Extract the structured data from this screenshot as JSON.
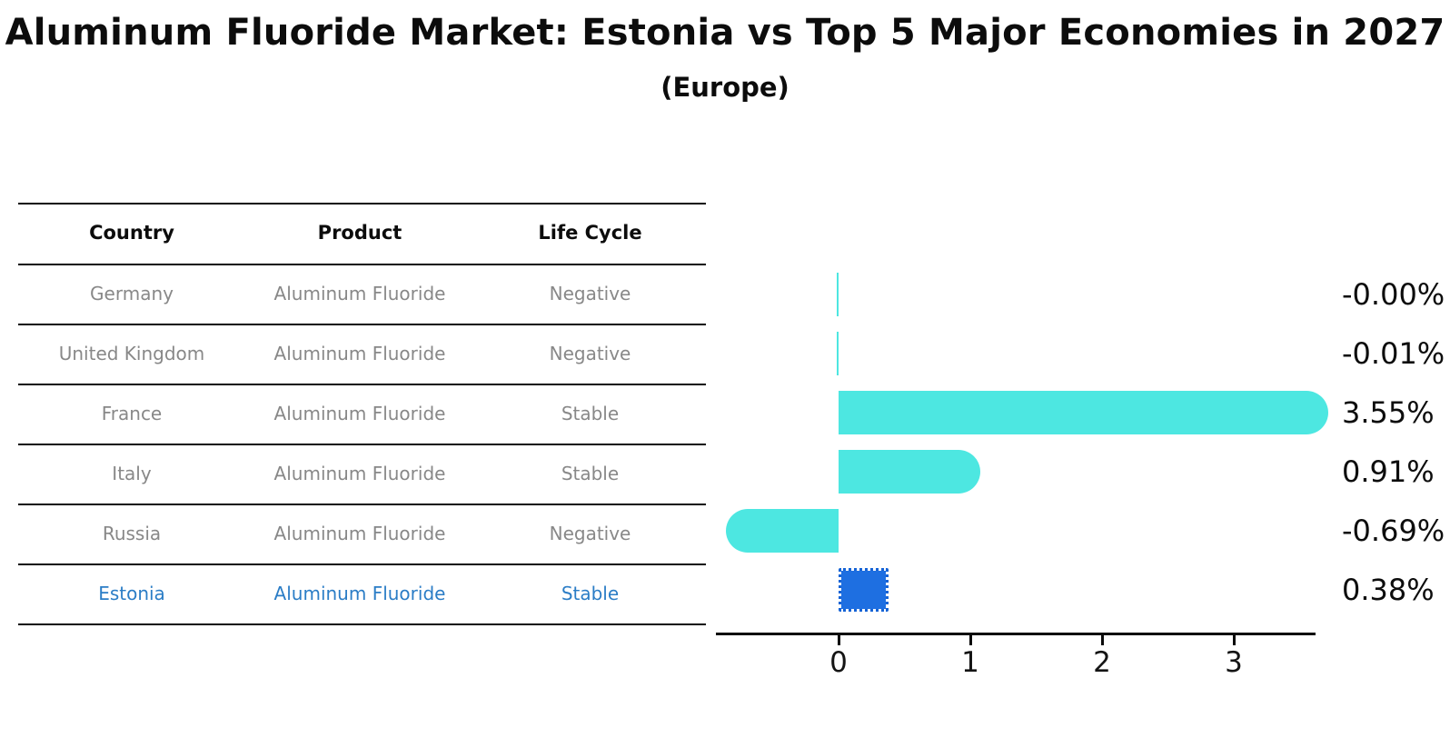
{
  "header": {
    "title": "Aluminum Fluoride Market: Estonia vs Top 5 Major Economies in 2027",
    "subtitle": "(Europe)"
  },
  "table": {
    "columns": [
      "Country",
      "Product",
      "Life Cycle"
    ],
    "rows": [
      {
        "country": "Germany",
        "product": "Aluminum Fluoride",
        "life_cycle": "Negative",
        "highlight": false
      },
      {
        "country": "United Kingdom",
        "product": "Aluminum Fluoride",
        "life_cycle": "Negative",
        "highlight": false
      },
      {
        "country": "France",
        "product": "Aluminum Fluoride",
        "life_cycle": "Stable",
        "highlight": false
      },
      {
        "country": "Italy",
        "product": "Aluminum Fluoride",
        "life_cycle": "Stable",
        "highlight": false
      },
      {
        "country": "Russia",
        "product": "Aluminum Fluoride",
        "life_cycle": "Negative",
        "highlight": false
      },
      {
        "country": "Estonia",
        "product": "Aluminum Fluoride",
        "life_cycle": "Stable",
        "highlight": true
      }
    ]
  },
  "chart_data": {
    "type": "bar",
    "orientation": "horizontal",
    "title": "Aluminum Fluoride Market: Estonia vs Top 5 Major Economies in 2027",
    "subtitle": "(Europe)",
    "categories": [
      "Germany",
      "United Kingdom",
      "France",
      "Italy",
      "Russia",
      "Estonia"
    ],
    "values": [
      -0.0,
      -0.01,
      3.55,
      0.91,
      -0.69,
      0.38
    ],
    "value_labels": [
      "-0.00%",
      "-0.01%",
      "3.55%",
      "0.91%",
      "-0.69%",
      "0.38%"
    ],
    "x_ticks": [
      0,
      1,
      2,
      3
    ],
    "x_tick_labels": [
      "0",
      "1",
      "2",
      "3"
    ],
    "xlim": [
      -0.93,
      3.62
    ],
    "xlabel": "",
    "ylabel": "",
    "grid": false,
    "legend": false,
    "bar_color": "#4de7e1",
    "highlight_color": "#1e6fe1",
    "highlight_border_color": "#1563d6",
    "highlight_index": 5,
    "highlight_category": "Estonia",
    "text_color": "#0c0c0c",
    "muted_text_color": "#888888",
    "highlight_text_color": "#2b7dc6"
  }
}
